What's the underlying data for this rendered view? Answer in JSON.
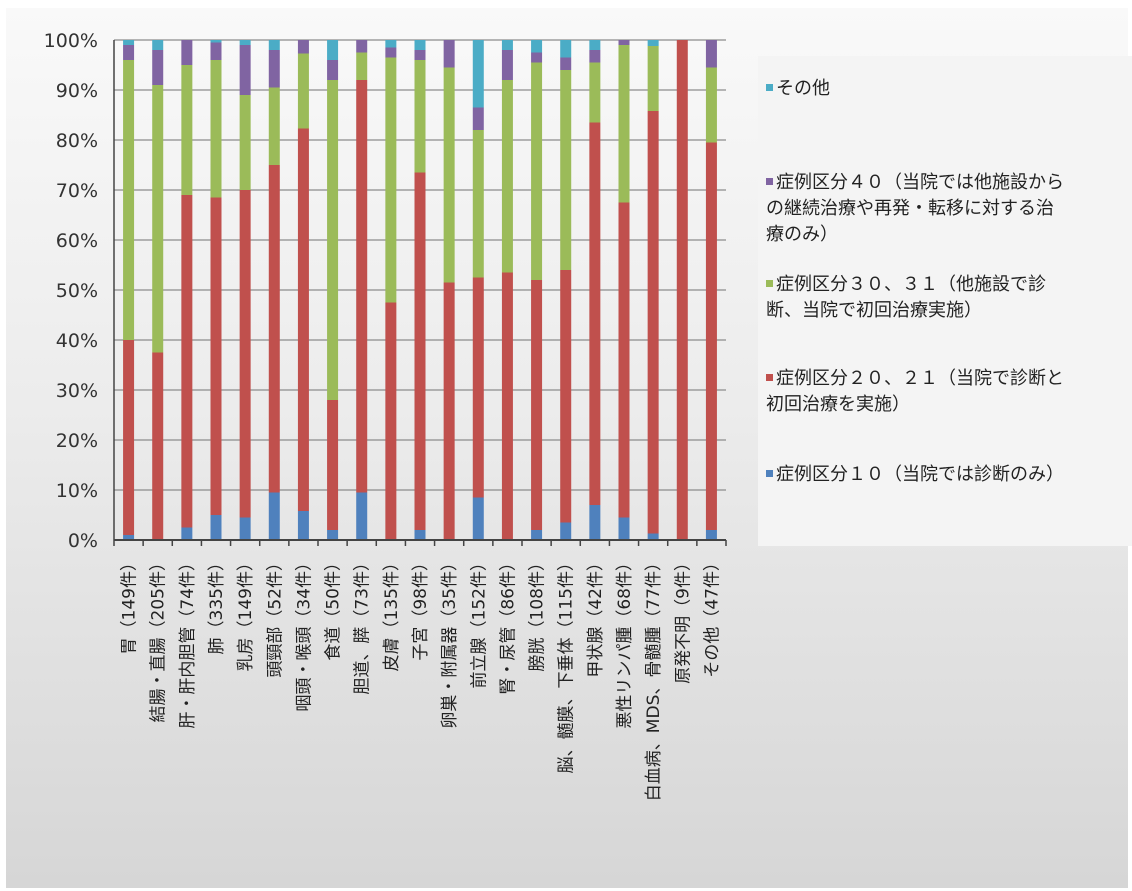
{
  "chart_data": {
    "type": "bar",
    "stacked": true,
    "ylim": [
      0,
      100
    ],
    "y_ticks": [
      "0%",
      "10%",
      "20%",
      "30%",
      "40%",
      "50%",
      "60%",
      "70%",
      "80%",
      "90%",
      "100%"
    ],
    "grid": true,
    "legend_position": "right",
    "categories": [
      "胃（149件）",
      "結腸・直腸（205件）",
      "肝・肝内胆管（74件）",
      "肺（335件）",
      "乳房（149件）",
      "頭頸部（52件）",
      "咽頭・喉頭（34件）",
      "食道（50件）",
      "胆道、膵（73件）",
      "皮膚（135件）",
      "子宮（98件）",
      "卵巣・附属器（35件）",
      "前立腺（152件）",
      "腎・尿管（86件）",
      "膀胱（108件）",
      "脳、髄膜、下垂体（115件）",
      "甲状腺（42件）",
      "悪性リンパ腫（68件）",
      "白血病、MDS、骨髄腫（77件）",
      "原発不明（9件）",
      "その他（47件）"
    ],
    "series": [
      {
        "name": "症例区分１０（当院では診断のみ）",
        "color": "#4f81bd",
        "values": [
          1,
          0,
          2.5,
          5,
          4.5,
          9.5,
          5.8,
          2,
          9.5,
          0,
          2,
          0,
          8.5,
          0,
          2,
          3.5,
          7,
          4.5,
          1.3,
          0,
          2
        ]
      },
      {
        "name": "症例区分２０、２１（当院で診断と初回治療を実施）",
        "color": "#c0504d",
        "values": [
          39,
          37.5,
          66.5,
          63.5,
          65.5,
          65.5,
          76.5,
          26,
          82.5,
          47.5,
          71.5,
          51.5,
          44,
          53.5,
          50,
          50.5,
          76.5,
          63,
          84.5,
          100,
          77.5
        ]
      },
      {
        "name": "症例区分３０、３１（他施設で診断、当院で初回治療実施）",
        "color": "#9bbb59",
        "values": [
          56,
          53.5,
          26,
          27.5,
          19,
          15.5,
          15,
          64,
          5.5,
          49,
          22.5,
          43,
          29.5,
          38.5,
          43.5,
          40,
          12,
          31.5,
          13,
          0,
          15
        ]
      },
      {
        "name": "症例区分４０（当院では他施設からの継続治療や再発・転移に対する治療のみ）",
        "color": "#8064a2",
        "values": [
          3,
          7,
          5,
          3.5,
          10,
          7.5,
          2.7,
          4,
          2.5,
          2,
          2,
          5.5,
          4.5,
          6,
          2,
          2.5,
          2.5,
          1,
          0,
          0,
          5.5
        ]
      },
      {
        "name": "その他",
        "color": "#4bacc6",
        "values": [
          1,
          2,
          0,
          0.5,
          1,
          2,
          0,
          4,
          0,
          1.5,
          2,
          0,
          13.5,
          2,
          2.5,
          3.5,
          2,
          0,
          1.2,
          0,
          0
        ]
      }
    ],
    "legend_order": [
      4,
      3,
      2,
      1,
      0
    ],
    "legend_lines": [
      [
        "その他"
      ],
      [
        "症例区分４０（当院では他施設から",
        "の継続治療や再発・転移に対する治",
        "療のみ）"
      ],
      [
        "症例区分３０、３１（他施設で診",
        "断、当院で初回治療実施）"
      ],
      [
        "症例区分２０、２１（当院で診断と",
        "初回治療を実施）"
      ],
      [
        "症例区分１０（当院では診断のみ）"
      ]
    ]
  }
}
